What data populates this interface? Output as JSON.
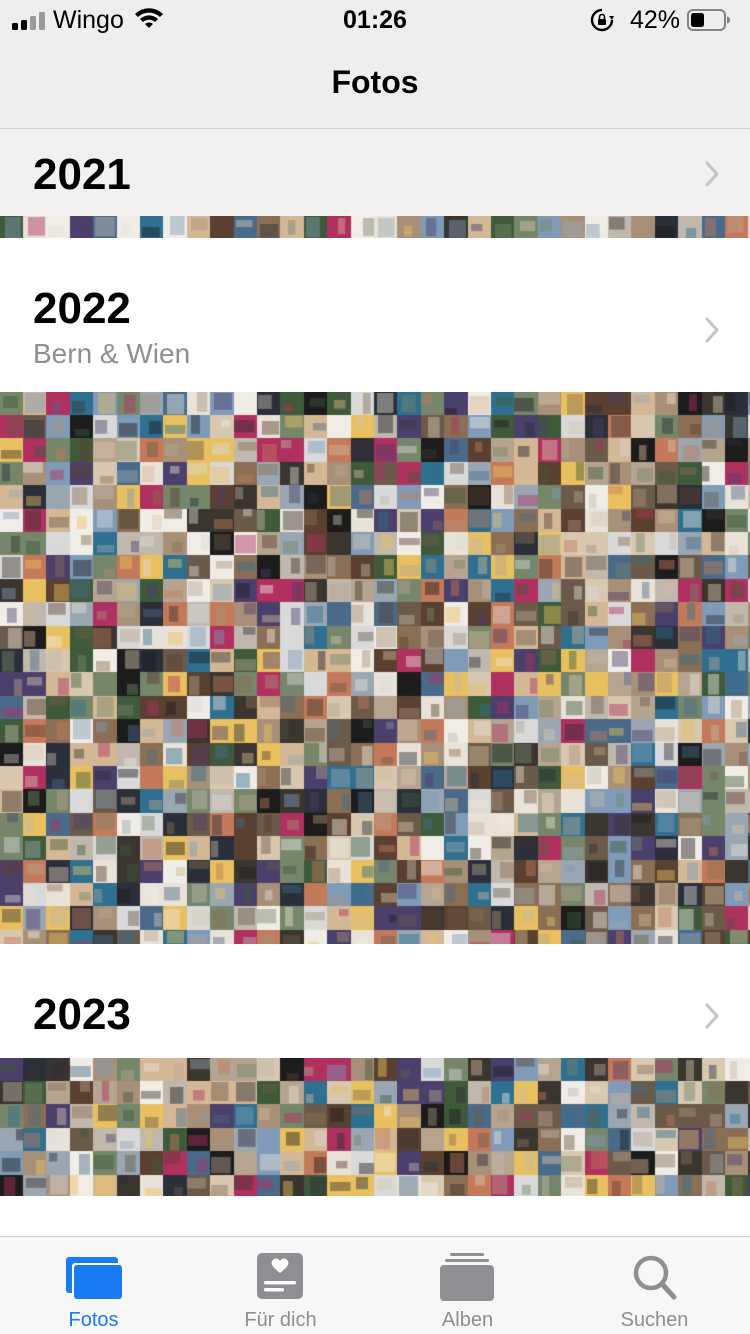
{
  "status": {
    "carrier": "Wingo",
    "time": "01:26",
    "battery_percent": "42%",
    "battery_level": 0.42
  },
  "nav": {
    "title": "Fotos"
  },
  "years": [
    {
      "year": "2021",
      "subtitle": ""
    },
    {
      "year": "2022",
      "subtitle": "Bern & Wien"
    },
    {
      "year": "2023",
      "subtitle": ""
    }
  ],
  "tabs": [
    {
      "label": "Fotos",
      "icon": "photos-icon",
      "active": true
    },
    {
      "label": "Für dich",
      "icon": "for-you-icon",
      "active": false
    },
    {
      "label": "Alben",
      "icon": "albums-icon",
      "active": false
    },
    {
      "label": "Suchen",
      "icon": "search-icon",
      "active": false
    }
  ],
  "colors": {
    "accent": "#1a7cf4",
    "inactive": "#8e8e93"
  }
}
